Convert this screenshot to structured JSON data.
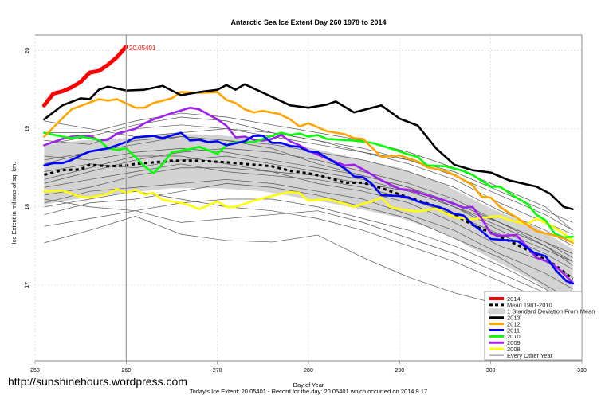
{
  "chart_data": {
    "type": "line",
    "title": "Antarctic Sea Ice Extent Day 260 1978 to 2014",
    "xlabel": "Day of Year",
    "ylabel": "Ice Extent in millions of sq. km.",
    "subtitle": "Today's Ice Extent: 20.05401  - Record for the day: 20.05401 which occurred on 2014 9 17",
    "xlim": [
      250,
      310
    ],
    "ylim": [
      16.03,
      20.2
    ],
    "xticks": [
      "250",
      "260",
      "270",
      "280",
      "290",
      "300",
      "310"
    ],
    "yticks": [
      "17",
      "18",
      "19",
      "20"
    ],
    "grid": true,
    "current_day": 260,
    "current_value_label": "20.05401",
    "legend_position": "bottom-right",
    "legend": [
      "2014",
      "Mean 1981-2010",
      "1 Standard Deviation From Mean",
      "2013",
      "2012",
      "2011",
      "2010",
      "2009",
      "2008",
      "Every Other Year"
    ],
    "band": {
      "name": "1 Standard Deviation From Mean",
      "color": "#d3d3d3",
      "x": [
        251,
        255,
        260,
        265,
        270,
        275,
        280,
        285,
        290,
        295,
        300,
        305,
        309
      ],
      "upper": [
        18.79,
        18.85,
        18.88,
        18.94,
        18.92,
        18.86,
        18.76,
        18.63,
        18.5,
        18.28,
        17.98,
        17.74,
        17.46
      ],
      "lower": [
        18.03,
        18.11,
        18.18,
        18.24,
        18.24,
        18.2,
        18.1,
        17.99,
        17.86,
        17.66,
        17.34,
        17.04,
        16.7
      ]
    },
    "other_years": {
      "name": "Every Other Year",
      "color": "#555555",
      "x": [
        251,
        256,
        261,
        266,
        271,
        276,
        281,
        286,
        291,
        296,
        301,
        306,
        309
      ],
      "lines": [
        [
          18.05,
          18.2,
          18.25,
          18.3,
          18.35,
          18.3,
          18.2,
          18.1,
          17.9,
          17.7,
          17.4,
          17.15,
          16.95
        ],
        [
          18.3,
          18.45,
          18.6,
          18.7,
          18.75,
          18.7,
          18.6,
          18.45,
          18.3,
          18.1,
          17.8,
          17.5,
          17.3
        ],
        [
          18.6,
          18.7,
          18.8,
          18.9,
          18.85,
          18.8,
          18.7,
          18.6,
          18.45,
          18.25,
          17.95,
          17.7,
          17.5
        ],
        [
          19.1,
          19.0,
          18.9,
          18.95,
          19.0,
          18.95,
          18.85,
          18.75,
          18.6,
          18.45,
          18.2,
          17.95,
          17.8
        ],
        [
          18.15,
          18.25,
          18.4,
          18.5,
          18.5,
          18.45,
          18.3,
          18.2,
          18.05,
          17.8,
          17.5,
          17.3,
          17.1
        ],
        [
          18.8,
          18.9,
          19.05,
          19.15,
          19.1,
          18.95,
          18.85,
          18.7,
          18.55,
          18.35,
          18.05,
          17.8,
          17.65
        ],
        [
          17.9,
          18.05,
          18.1,
          18.2,
          18.3,
          18.25,
          18.15,
          18.0,
          17.85,
          17.6,
          17.35,
          17.0,
          16.8
        ],
        [
          18.45,
          18.55,
          18.5,
          18.6,
          18.65,
          18.55,
          18.45,
          18.35,
          18.2,
          18.0,
          17.75,
          17.5,
          17.25
        ],
        [
          18.95,
          18.95,
          19.1,
          19.2,
          19.15,
          19.05,
          18.95,
          18.85,
          18.7,
          18.5,
          18.25,
          18.0,
          17.7
        ],
        [
          18.25,
          18.35,
          18.45,
          18.55,
          18.45,
          18.4,
          18.35,
          18.25,
          18.1,
          17.9,
          17.65,
          17.4,
          17.2
        ],
        [
          17.75,
          17.85,
          17.95,
          18.05,
          18.1,
          18.1,
          18.0,
          17.85,
          17.7,
          17.5,
          17.25,
          16.95,
          16.7
        ],
        [
          18.65,
          18.6,
          18.7,
          18.75,
          18.7,
          18.6,
          18.5,
          18.4,
          18.25,
          18.0,
          17.7,
          17.45,
          17.3
        ],
        [
          17.54,
          17.7,
          17.88,
          17.65,
          17.57,
          17.55,
          17.64,
          17.35,
          17.1,
          16.9,
          16.75,
          16.4,
          16.19
        ],
        [
          18.1,
          18.0,
          17.95,
          17.8,
          17.85,
          17.9,
          17.95,
          17.8,
          17.6,
          17.4,
          17.15,
          16.9,
          16.65
        ],
        [
          18.35,
          18.5,
          18.65,
          18.65,
          18.55,
          18.45,
          18.4,
          18.3,
          18.2,
          18.0,
          17.8,
          17.55,
          17.35
        ],
        [
          18.0,
          18.1,
          18.2,
          18.1,
          18.0,
          17.95,
          17.85,
          17.7,
          17.5,
          17.3,
          17.05,
          16.8,
          16.6
        ],
        [
          18.55,
          18.7,
          18.85,
          18.9,
          18.85,
          18.75,
          18.55,
          18.4,
          18.25,
          18.05,
          17.8,
          17.55,
          17.4
        ],
        [
          18.85,
          18.8,
          19.0,
          19.05,
          19.0,
          18.9,
          18.8,
          18.7,
          18.6,
          18.4,
          18.15,
          17.9,
          17.7
        ]
      ]
    },
    "series": [
      {
        "name": "Mean 1981-2010",
        "color": "#000000",
        "style": "dashed",
        "x": [
          251,
          253,
          255,
          256,
          258,
          260,
          261,
          263,
          265,
          268,
          271,
          274,
          276,
          278,
          280,
          282,
          284,
          286,
          288,
          291,
          295,
          298,
          301,
          303,
          305,
          307,
          309
        ],
        "y": [
          18.41,
          18.47,
          18.48,
          18.54,
          18.52,
          18.53,
          18.55,
          18.57,
          18.59,
          18.59,
          18.57,
          18.54,
          18.52,
          18.46,
          18.43,
          18.38,
          18.31,
          18.31,
          18.24,
          18.12,
          17.97,
          17.77,
          17.62,
          17.51,
          17.39,
          17.26,
          17.08
        ]
      },
      {
        "name": "2008",
        "color": "#ffff00",
        "x": [
          251,
          253,
          254,
          255,
          256,
          258,
          259,
          260,
          261,
          262,
          263,
          264,
          266,
          267,
          268,
          270,
          271,
          272,
          274,
          276,
          277,
          278,
          279,
          280,
          282,
          284,
          285,
          286,
          287,
          288,
          289,
          290,
          292,
          294,
          295,
          296,
          298,
          299,
          301,
          302,
          304,
          305,
          306.5,
          308,
          309
        ],
        "y": [
          18.2,
          18.21,
          18.17,
          18.13,
          18.12,
          18.17,
          18.23,
          18.18,
          18.22,
          18.16,
          18.18,
          18.09,
          18.05,
          18.02,
          17.97,
          18.07,
          18.0,
          18.0,
          18.08,
          18.14,
          18.17,
          18.19,
          18.18,
          18.08,
          18.1,
          18.04,
          18.0,
          18.04,
          18.07,
          18.12,
          18.0,
          17.97,
          17.94,
          17.98,
          17.92,
          17.87,
          17.84,
          17.86,
          17.88,
          17.83,
          17.78,
          17.85,
          17.77,
          17.66,
          17.57
        ]
      },
      {
        "name": "2009",
        "color": "#a020f0",
        "x": [
          251,
          253,
          254,
          256,
          257,
          258,
          259,
          260,
          261,
          262,
          263,
          265,
          267,
          268,
          270,
          271,
          272,
          273,
          274,
          275,
          276,
          277,
          278,
          279,
          280,
          282,
          284,
          285,
          286,
          288,
          290,
          291,
          293,
          295,
          297,
          298,
          299,
          300,
          301,
          302.8,
          304,
          305,
          306.5,
          307.7,
          309
        ],
        "y": [
          18.79,
          18.87,
          18.9,
          18.91,
          18.85,
          18.86,
          18.94,
          18.97,
          19.0,
          19.07,
          19.12,
          19.2,
          19.27,
          19.25,
          19.12,
          19.04,
          18.89,
          18.9,
          18.86,
          18.85,
          18.87,
          18.92,
          18.84,
          18.79,
          18.72,
          18.62,
          18.53,
          18.54,
          18.48,
          18.34,
          18.23,
          18.22,
          18.15,
          18.08,
          17.99,
          18.0,
          17.85,
          17.66,
          17.63,
          17.64,
          17.49,
          17.35,
          17.29,
          17.18,
          17.03
        ]
      },
      {
        "name": "2010",
        "color": "#00ff00",
        "x": [
          251,
          253,
          254,
          255,
          257,
          258,
          259,
          260,
          261,
          262,
          263,
          264,
          265,
          267,
          268,
          270,
          271,
          272,
          274,
          275,
          277,
          278,
          279,
          280,
          281,
          282,
          285,
          287,
          289,
          291,
          292,
          293,
          295,
          297,
          298,
          300,
          301,
          302.8,
          304,
          305,
          306,
          307,
          308,
          309
        ],
        "y": [
          18.95,
          18.9,
          18.88,
          18.9,
          18.86,
          18.75,
          18.73,
          18.75,
          18.64,
          18.52,
          18.43,
          18.55,
          18.7,
          18.74,
          18.77,
          18.68,
          18.79,
          18.83,
          18.83,
          18.87,
          18.95,
          18.92,
          18.94,
          18.9,
          18.92,
          18.87,
          18.85,
          18.82,
          18.75,
          18.67,
          18.64,
          18.53,
          18.52,
          18.46,
          18.41,
          18.26,
          18.26,
          18.12,
          18.04,
          17.9,
          17.83,
          17.66,
          17.61,
          17.62
        ]
      },
      {
        "name": "2011",
        "color": "#0000ff",
        "x": [
          251,
          252,
          253,
          254,
          255,
          256,
          258,
          259,
          260,
          261,
          263,
          264,
          266,
          267,
          268,
          269,
          270,
          271,
          273,
          274,
          275,
          276,
          277,
          278,
          279,
          280,
          281,
          282,
          284,
          285,
          286,
          287,
          288,
          290,
          291,
          292,
          293,
          295,
          296,
          297,
          298,
          299,
          300,
          301,
          303,
          304.8,
          306,
          307.2,
          308.3,
          309
        ],
        "y": [
          18.53,
          18.56,
          18.56,
          18.6,
          18.66,
          18.71,
          18.75,
          18.79,
          18.83,
          18.89,
          18.91,
          18.88,
          18.95,
          18.85,
          18.86,
          18.83,
          18.84,
          18.79,
          18.84,
          18.91,
          18.91,
          18.82,
          18.82,
          18.78,
          18.77,
          18.71,
          18.7,
          18.63,
          18.49,
          18.39,
          18.38,
          18.29,
          18.15,
          18.14,
          18.12,
          18.07,
          18.04,
          17.97,
          17.91,
          17.89,
          17.78,
          17.69,
          17.59,
          17.58,
          17.56,
          17.41,
          17.37,
          17.18,
          17.05,
          17.02
        ]
      },
      {
        "name": "2012",
        "color": "#ffa500",
        "x": [
          251,
          254,
          257,
          258,
          259,
          261,
          262,
          263,
          265,
          266,
          268,
          270,
          271,
          272,
          273,
          274,
          275,
          276.8,
          278,
          279,
          280,
          282,
          284,
          285,
          286,
          288,
          289,
          290,
          292,
          293,
          295,
          296,
          298,
          299,
          300,
          301,
          303,
          305,
          306.8,
          308,
          309
        ],
        "y": [
          18.9,
          19.25,
          19.38,
          19.36,
          19.38,
          19.27,
          19.27,
          19.33,
          19.39,
          19.47,
          19.46,
          19.47,
          19.37,
          19.33,
          19.25,
          19.21,
          19.23,
          19.19,
          19.12,
          19.03,
          19.07,
          18.97,
          18.93,
          18.88,
          18.87,
          18.64,
          18.65,
          18.66,
          18.58,
          18.51,
          18.46,
          18.41,
          18.28,
          18.13,
          18.12,
          18.0,
          17.85,
          17.69,
          17.64,
          17.6,
          17.54
        ]
      },
      {
        "name": "2013",
        "color": "#000000",
        "x": [
          251,
          253,
          255,
          256,
          257,
          258,
          260,
          262,
          264,
          266,
          268,
          270,
          271,
          272,
          273,
          275.6,
          278,
          280,
          282,
          283,
          285,
          288,
          290,
          292,
          294,
          296,
          298,
          300,
          302,
          305,
          306.5,
          308,
          309
        ],
        "y": [
          19.12,
          19.3,
          19.39,
          19.38,
          19.5,
          19.54,
          19.49,
          19.5,
          19.55,
          19.43,
          19.47,
          19.5,
          19.56,
          19.5,
          19.57,
          19.43,
          19.3,
          19.27,
          19.31,
          19.35,
          19.21,
          19.3,
          19.13,
          19.04,
          18.75,
          18.54,
          18.47,
          18.44,
          18.34,
          18.26,
          18.17,
          18.0,
          17.97
        ]
      },
      {
        "name": "2014",
        "color": "#ff0000",
        "x": [
          251,
          252,
          253,
          254,
          255,
          256,
          257,
          258,
          259,
          260
        ],
        "y": [
          19.3,
          19.45,
          19.48,
          19.53,
          19.6,
          19.72,
          19.74,
          19.82,
          19.92,
          20.054
        ]
      }
    ]
  },
  "footer": {
    "url": "http://sunshinehours.wordpress.com"
  }
}
